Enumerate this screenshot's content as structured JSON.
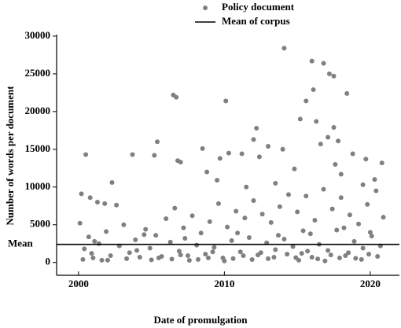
{
  "chart_data": {
    "type": "scatter",
    "xlabel": "Date of promulgation",
    "ylabel": "Number of words per document",
    "xlim": [
      1998.5,
      2022
    ],
    "ylim": [
      -1700,
      30200
    ],
    "xticks": [
      2000,
      2010,
      2020
    ],
    "yticks": [
      0,
      5000,
      10000,
      15000,
      20000,
      25000,
      30000
    ],
    "legend": "upper right",
    "series": [
      {
        "name": "Policy document",
        "color": "#808080",
        "x": [
          2000.2,
          2000.5,
          2000.8,
          2001.3,
          2001.8,
          2002.3,
          2002.6,
          2003.7,
          2005.4,
          2005.2,
          2006.5,
          2006.7,
          2006.8,
          2007.0,
          2008.5,
          2009.7,
          2010.1,
          2010.3,
          2011.2,
          2012.2,
          2012.0,
          2012.4,
          2013.0,
          2014.1,
          2014.0,
          2015.2,
          2015.6,
          2016.0,
          2016.1,
          2016.3,
          2016.8,
          2017.2,
          2017.5,
          2017.5,
          2017.8,
          2018.4,
          2017.1,
          2016.6,
          2018.8,
          2019.7,
          2020.8,
          2020.3,
          2019.5,
          2011.5,
          2009.5,
          2008.8,
          2014.8,
          2013.5,
          2018.0,
          2017.6,
          2000.1,
          2000.4,
          2000.7,
          2001.0,
          2001.4,
          2001.9,
          2002.2,
          2002.8,
          2003.1,
          2003.5,
          2003.9,
          2004.2,
          2004.6,
          2004.9,
          2005.3,
          2005.7,
          2006.0,
          2006.3,
          2006.6,
          2006.9,
          2007.2,
          2007.5,
          2007.8,
          2008.1,
          2008.4,
          2008.7,
          2009.0,
          2009.3,
          2009.6,
          2009.9,
          2010.2,
          2010.5,
          2010.8,
          2011.1,
          2011.4,
          2011.7,
          2012.0,
          2012.3,
          2012.6,
          2012.9,
          2013.2,
          2013.5,
          2013.8,
          2014.1,
          2014.4,
          2014.7,
          2015.0,
          2015.3,
          2015.6,
          2015.9,
          2016.2,
          2016.5,
          2016.8,
          2017.1,
          2017.4,
          2017.7,
          2018.0,
          2018.3,
          2018.6,
          2018.9,
          2019.2,
          2019.5,
          2019.8,
          2020.1,
          2020.4,
          2020.7,
          2020.9,
          2000.3,
          2001.6,
          2003.3,
          2005.0,
          2006.4,
          2007.6,
          2008.9,
          2010.6,
          2011.9,
          2013.4,
          2014.9,
          2016.4,
          2019.0,
          2000.9,
          2002.0,
          2004.0,
          2005.5,
          2007.0,
          2008.2,
          2009.2,
          2010.0,
          2011.3,
          2012.5,
          2013.0,
          2014.3,
          2015.1,
          2015.7,
          2016.0,
          2016.9,
          2017.3,
          2017.9,
          2018.5,
          2019.4,
          2019.9,
          2020.5,
          2001.1,
          2004.5,
          2007.3,
          2010.9,
          2013.7,
          2015.4,
          2018.2,
          2020.0
        ],
        "values": [
          9100,
          14300,
          8600,
          8000,
          7800,
          10600,
          7600,
          14300,
          16000,
          14200,
          22200,
          21900,
          13500,
          13300,
          15100,
          13800,
          21400,
          14500,
          14400,
          17800,
          16300,
          14000,
          15400,
          28400,
          15000,
          19000,
          21400,
          26700,
          22900,
          18700,
          26400,
          25000,
          24700,
          17900,
          16100,
          22400,
          16600,
          15700,
          14400,
          13700,
          13200,
          11000,
          10300,
          10000,
          10900,
          12000,
          12400,
          10500,
          11700,
          13000,
          5200,
          1800,
          3400,
          600,
          2500,
          4100,
          900,
          2200,
          5000,
          1300,
          3000,
          700,
          4400,
          1900,
          3600,
          800,
          5800,
          2700,
          7200,
          1500,
          4600,
          900,
          6200,
          2300,
          3900,
          1100,
          5400,
          2000,
          7800,
          600,
          4700,
          2900,
          6800,
          1400,
          5900,
          3300,
          8200,
          1000,
          6400,
          2600,
          5300,
          1700,
          7400,
          3100,
          9000,
          2100,
          6700,
          1200,
          8800,
          3800,
          5600,
          2400,
          9700,
          1600,
          7100,
          4300,
          8600,
          900,
          6300,
          2800,
          5100,
          1900,
          7700,
          3500,
          9500,
          2200,
          6000,
          400,
          300,
          500,
          350,
          450,
          280,
          600,
          520,
          380,
          700,
          650,
          480,
          550,
          1200,
          300,
          1600,
          600,
          1000,
          400,
          1400,
          200,
          900,
          1300,
          500,
          1100,
          300,
          1500,
          700,
          200,
          1000,
          600,
          1300,
          400,
          1100,
          800,
          2800,
          3700,
          3200,
          3900,
          3600,
          4200,
          4600,
          4000
        ]
      }
    ],
    "mean": {
      "name": "Mean of corpus",
      "label": "Mean",
      "value": 2400,
      "color": "#000000"
    }
  }
}
